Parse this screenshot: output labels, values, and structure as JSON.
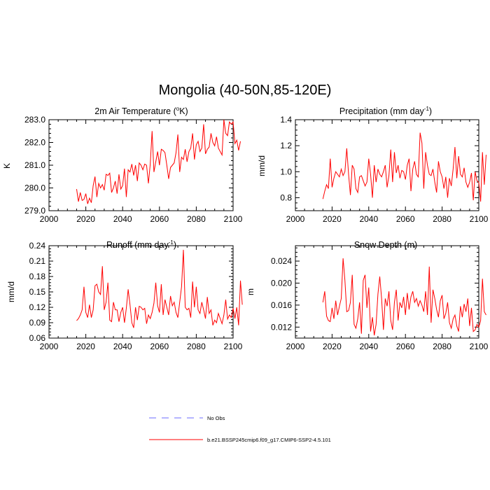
{
  "title": "Mongolia (40-50N,85-120E)",
  "legend": [
    {
      "label": "No Obs",
      "color": "#6b6bff",
      "style": "dashed"
    },
    {
      "label": "b.e21.BSSP245cmip6.f09_g17.CMIP6-SSP2-4.5.101",
      "color": "#ff0000",
      "style": "solid"
    }
  ],
  "chart_data": [
    {
      "type": "line",
      "title_main": "2m Air Temperature (",
      "title_sup": "o",
      "title_end": "K)",
      "ylabel": "K",
      "xlim": [
        2000,
        2100
      ],
      "ylim": [
        279.0,
        283.0
      ],
      "xticks": [
        "2000",
        "2020",
        "2040",
        "2060",
        "2080",
        "2100"
      ],
      "yticks": [
        "279.0",
        "280.0",
        "281.0",
        "282.0",
        "283.0"
      ],
      "x_start": 2015,
      "series": [
        {
          "name": "b.e21.BSSP245cmip6.f09_g17.CMIP6-SSP2-4.5.101",
          "color": "#ff0000",
          "values": [
            279.95,
            279.4,
            279.8,
            279.45,
            279.5,
            279.75,
            279.3,
            279.55,
            279.35,
            280.1,
            280.5,
            279.6,
            280.2,
            280.0,
            280.15,
            279.9,
            280.6,
            280.55,
            280.65,
            279.8,
            280.0,
            280.3,
            279.75,
            280.6,
            279.95,
            280.1,
            280.85,
            279.6,
            280.8,
            280.7,
            281.05,
            280.55,
            281.0,
            280.3,
            281.1,
            281.0,
            280.8,
            281.05,
            281.0,
            280.2,
            281.05,
            282.5,
            280.7,
            281.15,
            281.6,
            281.0,
            281.7,
            281.65,
            281.55,
            281.0,
            280.4,
            280.9,
            281.0,
            281.1,
            281.55,
            282.35,
            280.7,
            281.35,
            281.25,
            281.7,
            281.15,
            281.6,
            281.75,
            282.4,
            281.25,
            281.9,
            282.05,
            281.6,
            281.75,
            282.8,
            281.5,
            281.7,
            281.8,
            282.4,
            282.0,
            281.85,
            282.25,
            281.75,
            281.6,
            281.45,
            283.0,
            282.4,
            282.3,
            282.9,
            282.8,
            282.9,
            281.95,
            282.1,
            281.65,
            282.05
          ]
        }
      ]
    },
    {
      "type": "line",
      "title_main": "Precipitation (mm day",
      "title_sup": "-1",
      "title_end": ")",
      "ylabel": "mm/d",
      "xlim": [
        2000,
        2100
      ],
      "ylim": [
        0.7,
        1.4
      ],
      "xticks": [
        "2000",
        "2020",
        "2040",
        "2060",
        "2080",
        "2100"
      ],
      "yticks": [
        "0.8",
        "1.0",
        "1.2",
        "1.4"
      ],
      "x_start": 2015,
      "series": [
        {
          "name": "b.e21.BSSP245cmip6.f09_g17.CMIP6-SSP2-4.5.101",
          "color": "#ff0000",
          "values": [
            0.79,
            0.85,
            0.9,
            0.87,
            1.1,
            0.88,
            0.95,
            1.0,
            0.98,
            0.96,
            1.02,
            0.97,
            1.0,
            1.18,
            0.98,
            0.82,
            1.05,
            1.02,
            0.87,
            0.84,
            0.96,
            0.97,
            0.93,
            0.89,
            0.92,
            1.1,
            0.98,
            0.8,
            1.05,
            0.92,
            1.02,
            0.98,
            0.96,
            1.0,
            1.05,
            0.88,
            0.97,
            1.17,
            0.92,
            1.15,
            0.99,
            1.05,
            0.95,
            1.01,
            1.0,
            0.94,
            1.05,
            1.1,
            0.85,
            1.02,
            1.08,
            0.98,
            0.96,
            1.3,
            1.22,
            0.87,
            1.15,
            1.05,
            0.98,
            0.97,
            1.02,
            0.92,
            0.84,
            1.08,
            1.0,
            0.96,
            0.87,
            0.96,
            0.8,
            0.95,
            0.89,
            1.02,
            1.19,
            0.95,
            1.12,
            0.98,
            0.96,
            1.03,
            0.92,
            0.88,
            0.92,
            0.99,
            0.78,
            1.0,
            0.93,
            0.92,
            0.77,
            1.15,
            0.9,
            1.13
          ]
        }
      ]
    },
    {
      "type": "line",
      "title_main": "Runoff (mm day",
      "title_sup": "-1",
      "title_end": ")",
      "ylabel": "mm/d",
      "xlim": [
        2000,
        2100
      ],
      "ylim": [
        0.06,
        0.24
      ],
      "xticks": [
        "2000",
        "2020",
        "2040",
        "2060",
        "2080",
        "2100"
      ],
      "yticks": [
        "0.06",
        "0.09",
        "0.12",
        "0.15",
        "0.18",
        "0.21",
        "0.24"
      ],
      "x_start": 2015,
      "series": [
        {
          "name": "b.e21.BSSP245cmip6.f09_g17.CMIP6-SSP2-4.5.101",
          "color": "#ff0000",
          "values": [
            0.094,
            0.098,
            0.105,
            0.115,
            0.16,
            0.11,
            0.1,
            0.125,
            0.1,
            0.115,
            0.162,
            0.165,
            0.15,
            0.145,
            0.2,
            0.115,
            0.13,
            0.168,
            0.095,
            0.092,
            0.13,
            0.115,
            0.115,
            0.092,
            0.11,
            0.12,
            0.09,
            0.118,
            0.155,
            0.125,
            0.09,
            0.08,
            0.12,
            0.095,
            0.122,
            0.12,
            0.115,
            0.118,
            0.088,
            0.105,
            0.098,
            0.11,
            0.128,
            0.168,
            0.123,
            0.11,
            0.165,
            0.105,
            0.135,
            0.12,
            0.105,
            0.142,
            0.123,
            0.13,
            0.11,
            0.1,
            0.13,
            0.16,
            0.232,
            0.12,
            0.115,
            0.118,
            0.1,
            0.17,
            0.12,
            0.16,
            0.115,
            0.108,
            0.13,
            0.115,
            0.098,
            0.14,
            0.108,
            0.115,
            0.085,
            0.095,
            0.09,
            0.108,
            0.098,
            0.088,
            0.105,
            0.135,
            0.097,
            0.105,
            0.1,
            0.118,
            0.098,
            0.12,
            0.085,
            0.172,
            0.125
          ]
        }
      ]
    },
    {
      "type": "line",
      "title_main": "Snow Depth (m)",
      "title_sup": "",
      "title_end": "",
      "ylabel": "m",
      "xlim": [
        2000,
        2100
      ],
      "ylim": [
        0.01,
        0.0268
      ],
      "xticks": [
        "2000",
        "2020",
        "2040",
        "2060",
        "2080",
        "2100"
      ],
      "yticks": [
        "0.012",
        "0.016",
        "0.020",
        "0.024"
      ],
      "x_start": 2015,
      "series": [
        {
          "name": "b.e21.BSSP245cmip6.f09_g17.CMIP6-SSP2-4.5.101",
          "color": "#ff0000",
          "values": [
            0.0165,
            0.0185,
            0.014,
            0.0132,
            0.013,
            0.0155,
            0.0135,
            0.0168,
            0.0142,
            0.0158,
            0.0172,
            0.0245,
            0.0205,
            0.0148,
            0.015,
            0.0165,
            0.0215,
            0.0125,
            0.0118,
            0.0135,
            0.0165,
            0.0108,
            0.0205,
            0.0215,
            0.0155,
            0.0192,
            0.0112,
            0.0138,
            0.0105,
            0.0125,
            0.018,
            0.0212,
            0.0172,
            0.0115,
            0.0172,
            0.0158,
            0.0185,
            0.0132,
            0.0115,
            0.0165,
            0.0188,
            0.0132,
            0.0165,
            0.0155,
            0.0175,
            0.0142,
            0.0182,
            0.0152,
            0.0175,
            0.0185,
            0.0165,
            0.0172,
            0.0158,
            0.0168,
            0.016,
            0.0148,
            0.0185,
            0.0142,
            0.023,
            0.0128,
            0.0188,
            0.0172,
            0.0152,
            0.0138,
            0.0168,
            0.0178,
            0.0135,
            0.0145,
            0.0165,
            0.0128,
            0.0118,
            0.0135,
            0.0142,
            0.0122,
            0.0112,
            0.0158,
            0.0138,
            0.0162,
            0.0148,
            0.0172,
            0.0122,
            0.0155,
            0.0112,
            0.0115,
            0.0125,
            0.012,
            0.0132,
            0.0208,
            0.0148,
            0.0142
          ]
        }
      ]
    }
  ]
}
